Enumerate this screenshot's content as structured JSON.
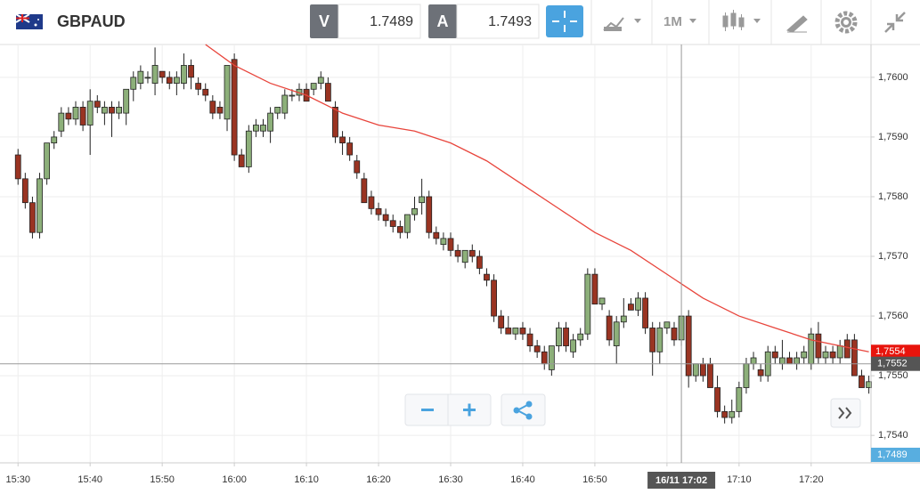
{
  "toolbar": {
    "symbol": "GBPAUD",
    "bid_label": "V",
    "bid": "1.7489",
    "ask_label": "A",
    "ask": "1.7493",
    "timeframe": "1M"
  },
  "chart_data": {
    "type": "candlestick",
    "xlim": [
      -2.5,
      118.3
    ],
    "xticks": [
      {
        "value": 0,
        "label": "15:30"
      },
      {
        "value": 10,
        "label": "15:40"
      },
      {
        "value": 20,
        "label": "15:50"
      },
      {
        "value": 30,
        "label": "16:00"
      },
      {
        "value": 40,
        "label": "16:10"
      },
      {
        "value": 50,
        "label": "16:20"
      },
      {
        "value": 60,
        "label": "16:30"
      },
      {
        "value": 70,
        "label": "16:40"
      },
      {
        "value": 80,
        "label": "16:50"
      },
      {
        "value": 90,
        "label": "17:00"
      },
      {
        "value": 100,
        "label": "17:10"
      },
      {
        "value": 110,
        "label": "17:20"
      }
    ],
    "ylim": [
      1.75354,
      1.76055
    ],
    "yticks": [
      {
        "value": 1.754,
        "label": "1,7540"
      },
      {
        "value": 1.755,
        "label": "1,7550"
      },
      {
        "value": 1.756,
        "label": "1,7560"
      },
      {
        "value": 1.757,
        "label": "1,7570"
      },
      {
        "value": 1.758,
        "label": "1,7580"
      },
      {
        "value": 1.759,
        "label": "1,7590"
      },
      {
        "value": 1.76,
        "label": "1,7600"
      }
    ],
    "grid": true,
    "up_color": "#8db07a",
    "down_color": "#9a3422",
    "candles": [
      [
        1.7587,
        1.7588,
        1.7582,
        1.7583
      ],
      [
        1.7583,
        1.7584,
        1.7578,
        1.7579
      ],
      [
        1.7579,
        1.758,
        1.7573,
        1.7574
      ],
      [
        1.7574,
        1.7584,
        1.7573,
        1.7583
      ],
      [
        1.7583,
        1.7589,
        1.7582,
        1.7589
      ],
      [
        1.7589,
        1.7591,
        1.7588,
        1.759
      ],
      [
        1.7591,
        1.7595,
        1.759,
        1.7594
      ],
      [
        1.7594,
        1.7595,
        1.7592,
        1.7593
      ],
      [
        1.7593,
        1.7596,
        1.7592,
        1.7595
      ],
      [
        1.7595,
        1.7596,
        1.7591,
        1.7592
      ],
      [
        1.7592,
        1.7598,
        1.7587,
        1.7596
      ],
      [
        1.7596,
        1.7597,
        1.7594,
        1.7595
      ],
      [
        1.7594,
        1.7596,
        1.7592,
        1.7595
      ],
      [
        1.7595,
        1.7596,
        1.759,
        1.7594
      ],
      [
        1.7594,
        1.7596,
        1.7593,
        1.7595
      ],
      [
        1.7594,
        1.7598,
        1.7592,
        1.7598
      ],
      [
        1.7598,
        1.7601,
        1.7596,
        1.76
      ],
      [
        1.7599,
        1.7602,
        1.7598,
        1.7601
      ],
      [
        1.76,
        1.7601,
        1.7599,
        1.76
      ],
      [
        1.7599,
        1.7605,
        1.7597,
        1.7602
      ],
      [
        1.7601,
        1.7601,
        1.7599,
        1.76
      ],
      [
        1.76,
        1.7601,
        1.7598,
        1.7599
      ],
      [
        1.7599,
        1.7601,
        1.7597,
        1.76
      ],
      [
        1.7599,
        1.7604,
        1.7598,
        1.7602
      ],
      [
        1.7602,
        1.7603,
        1.7598,
        1.76
      ],
      [
        1.7599,
        1.76,
        1.7597,
        1.7598
      ],
      [
        1.7598,
        1.7599,
        1.7596,
        1.7597
      ],
      [
        1.7596,
        1.7597,
        1.7593,
        1.7594
      ],
      [
        1.7595,
        1.7596,
        1.7593,
        1.7594
      ],
      [
        1.7593,
        1.7602,
        1.7591,
        1.7602
      ],
      [
        1.7603,
        1.7604,
        1.7586,
        1.7587
      ],
      [
        1.7587,
        1.7588,
        1.7585,
        1.7585
      ],
      [
        1.7585,
        1.7592,
        1.7584,
        1.7591
      ],
      [
        1.7591,
        1.7593,
        1.759,
        1.7592
      ],
      [
        1.7591,
        1.7593,
        1.759,
        1.7592
      ],
      [
        1.7591,
        1.7595,
        1.7589,
        1.7594
      ],
      [
        1.7594,
        1.7595,
        1.7593,
        1.7595
      ],
      [
        1.7594,
        1.7598,
        1.7593,
        1.7597
      ],
      [
        1.7597,
        1.7598,
        1.7596,
        1.7597
      ],
      [
        1.7597,
        1.7599,
        1.7596,
        1.7598
      ],
      [
        1.7598,
        1.7599,
        1.7596,
        1.7596
      ],
      [
        1.7598,
        1.7599,
        1.7597,
        1.7599
      ],
      [
        1.7599,
        1.7601,
        1.7598,
        1.76
      ],
      [
        1.7599,
        1.76,
        1.7596,
        1.7596
      ],
      [
        1.7595,
        1.7596,
        1.7589,
        1.759
      ],
      [
        1.759,
        1.7591,
        1.7587,
        1.7589
      ],
      [
        1.7589,
        1.759,
        1.7586,
        1.7587
      ],
      [
        1.7586,
        1.7587,
        1.7583,
        1.7584
      ],
      [
        1.7583,
        1.7584,
        1.7579,
        1.7579
      ],
      [
        1.758,
        1.7581,
        1.7577,
        1.7578
      ],
      [
        1.7578,
        1.7579,
        1.7576,
        1.7577
      ],
      [
        1.7577,
        1.7578,
        1.7575,
        1.7576
      ],
      [
        1.7576,
        1.7577,
        1.7574,
        1.7575
      ],
      [
        1.7575,
        1.7576,
        1.7573,
        1.7574
      ],
      [
        1.7574,
        1.7577,
        1.7573,
        1.7577
      ],
      [
        1.7577,
        1.758,
        1.7576,
        1.7578
      ],
      [
        1.7579,
        1.7583,
        1.7577,
        1.758
      ],
      [
        1.758,
        1.7581,
        1.7573,
        1.7574
      ],
      [
        1.7574,
        1.7575,
        1.7572,
        1.7573
      ],
      [
        1.7572,
        1.7574,
        1.7571,
        1.7573
      ],
      [
        1.7573,
        1.7574,
        1.757,
        1.7571
      ],
      [
        1.7571,
        1.7572,
        1.7569,
        1.757
      ],
      [
        1.7569,
        1.7571,
        1.7568,
        1.7571
      ],
      [
        1.7571,
        1.7572,
        1.7569,
        1.757
      ],
      [
        1.757,
        1.7571,
        1.7567,
        1.7568
      ],
      [
        1.7567,
        1.7568,
        1.7565,
        1.7566
      ],
      [
        1.7566,
        1.7567,
        1.7559,
        1.756
      ],
      [
        1.756,
        1.7561,
        1.7557,
        1.7558
      ],
      [
        1.7558,
        1.756,
        1.7557,
        1.7557
      ],
      [
        1.7557,
        1.7558,
        1.7556,
        1.7558
      ],
      [
        1.7558,
        1.7559,
        1.7556,
        1.7557
      ],
      [
        1.7557,
        1.7558,
        1.7554,
        1.7555
      ],
      [
        1.7555,
        1.7556,
        1.7553,
        1.7554
      ],
      [
        1.7554,
        1.7555,
        1.7551,
        1.7552
      ],
      [
        1.7551,
        1.7555,
        1.755,
        1.7555
      ],
      [
        1.7555,
        1.7559,
        1.7554,
        1.7558
      ],
      [
        1.7558,
        1.7559,
        1.7554,
        1.7555
      ],
      [
        1.7554,
        1.7557,
        1.7553,
        1.7556
      ],
      [
        1.7556,
        1.7558,
        1.7555,
        1.7557
      ],
      [
        1.7557,
        1.7568,
        1.7556,
        1.7567
      ],
      [
        1.7567,
        1.7568,
        1.7562,
        1.7562
      ],
      [
        1.7562,
        1.7563,
        1.7561,
        1.7563
      ],
      [
        1.756,
        1.7561,
        1.7555,
        1.7556
      ],
      [
        1.7555,
        1.756,
        1.7552,
        1.7559
      ],
      [
        1.7559,
        1.7563,
        1.7558,
        1.756
      ],
      [
        1.7562,
        1.7563,
        1.7561,
        1.7561
      ],
      [
        1.7561,
        1.7564,
        1.756,
        1.7563
      ],
      [
        1.7563,
        1.7564,
        1.7557,
        1.7558
      ],
      [
        1.7558,
        1.7559,
        1.755,
        1.7554
      ],
      [
        1.7554,
        1.7559,
        1.7552,
        1.7558
      ],
      [
        1.7558,
        1.7559,
        1.7557,
        1.7559
      ],
      [
        1.7558,
        1.7559,
        1.7555,
        1.7556
      ],
      [
        1.7556,
        1.756,
        1.7555,
        1.756
      ],
      [
        1.756,
        1.7561,
        1.7548,
        1.755
      ],
      [
        1.755,
        1.7552,
        1.7549,
        1.7552
      ],
      [
        1.7552,
        1.7553,
        1.7549,
        1.755
      ],
      [
        1.7552,
        1.7553,
        1.7548,
        1.7548
      ],
      [
        1.7548,
        1.755,
        1.7543,
        1.7544
      ],
      [
        1.7544,
        1.7545,
        1.7542,
        1.7543
      ],
      [
        1.7543,
        1.7546,
        1.7542,
        1.7544
      ],
      [
        1.7544,
        1.7549,
        1.7543,
        1.7548
      ],
      [
        1.7548,
        1.7553,
        1.7547,
        1.7552
      ],
      [
        1.7552,
        1.7554,
        1.7551,
        1.7553
      ],
      [
        1.7551,
        1.7552,
        1.7549,
        1.755
      ],
      [
        1.755,
        1.7555,
        1.7549,
        1.7554
      ],
      [
        1.7554,
        1.7555,
        1.7552,
        1.7553
      ],
      [
        1.7552,
        1.7556,
        1.7551,
        1.7553
      ],
      [
        1.7553,
        1.7554,
        1.7552,
        1.7552
      ],
      [
        1.7552,
        1.7554,
        1.7551,
        1.7553
      ],
      [
        1.7553,
        1.7555,
        1.7552,
        1.7554
      ],
      [
        1.7552,
        1.7558,
        1.7551,
        1.7557
      ],
      [
        1.7557,
        1.7559,
        1.7552,
        1.7553
      ],
      [
        1.7553,
        1.7555,
        1.7552,
        1.7554
      ],
      [
        1.7554,
        1.7555,
        1.7552,
        1.7553
      ],
      [
        1.7553,
        1.7556,
        1.7552,
        1.7555
      ],
      [
        1.7556,
        1.7557,
        1.7553,
        1.7553
      ],
      [
        1.7556,
        1.7557,
        1.755,
        1.755
      ],
      [
        1.755,
        1.7551,
        1.7548,
        1.7548
      ],
      [
        1.7548,
        1.755,
        1.7547,
        1.7549
      ]
    ],
    "ma": {
      "color": "#e8453c",
      "x": [
        26,
        30,
        35,
        40,
        45,
        50,
        55,
        60,
        65,
        70,
        75,
        80,
        85,
        90,
        95,
        100,
        105,
        110,
        118
      ],
      "values": [
        1.76055,
        1.7602,
        1.7599,
        1.7597,
        1.7594,
        1.7592,
        1.7591,
        1.7589,
        1.7586,
        1.7582,
        1.7578,
        1.7574,
        1.7571,
        1.7567,
        1.7563,
        1.756,
        1.7558,
        1.7556,
        1.7554
      ]
    },
    "last_price": {
      "value": 1.7554,
      "label": "1,7554",
      "color": "#e8140c"
    },
    "bid_price": {
      "label": "1,7489",
      "color": "#58aee0"
    },
    "crosshair": {
      "x": 92,
      "x_label": "16/11 17:02",
      "y": {
        "value": 1.7552,
        "label": "1,7552"
      }
    }
  }
}
